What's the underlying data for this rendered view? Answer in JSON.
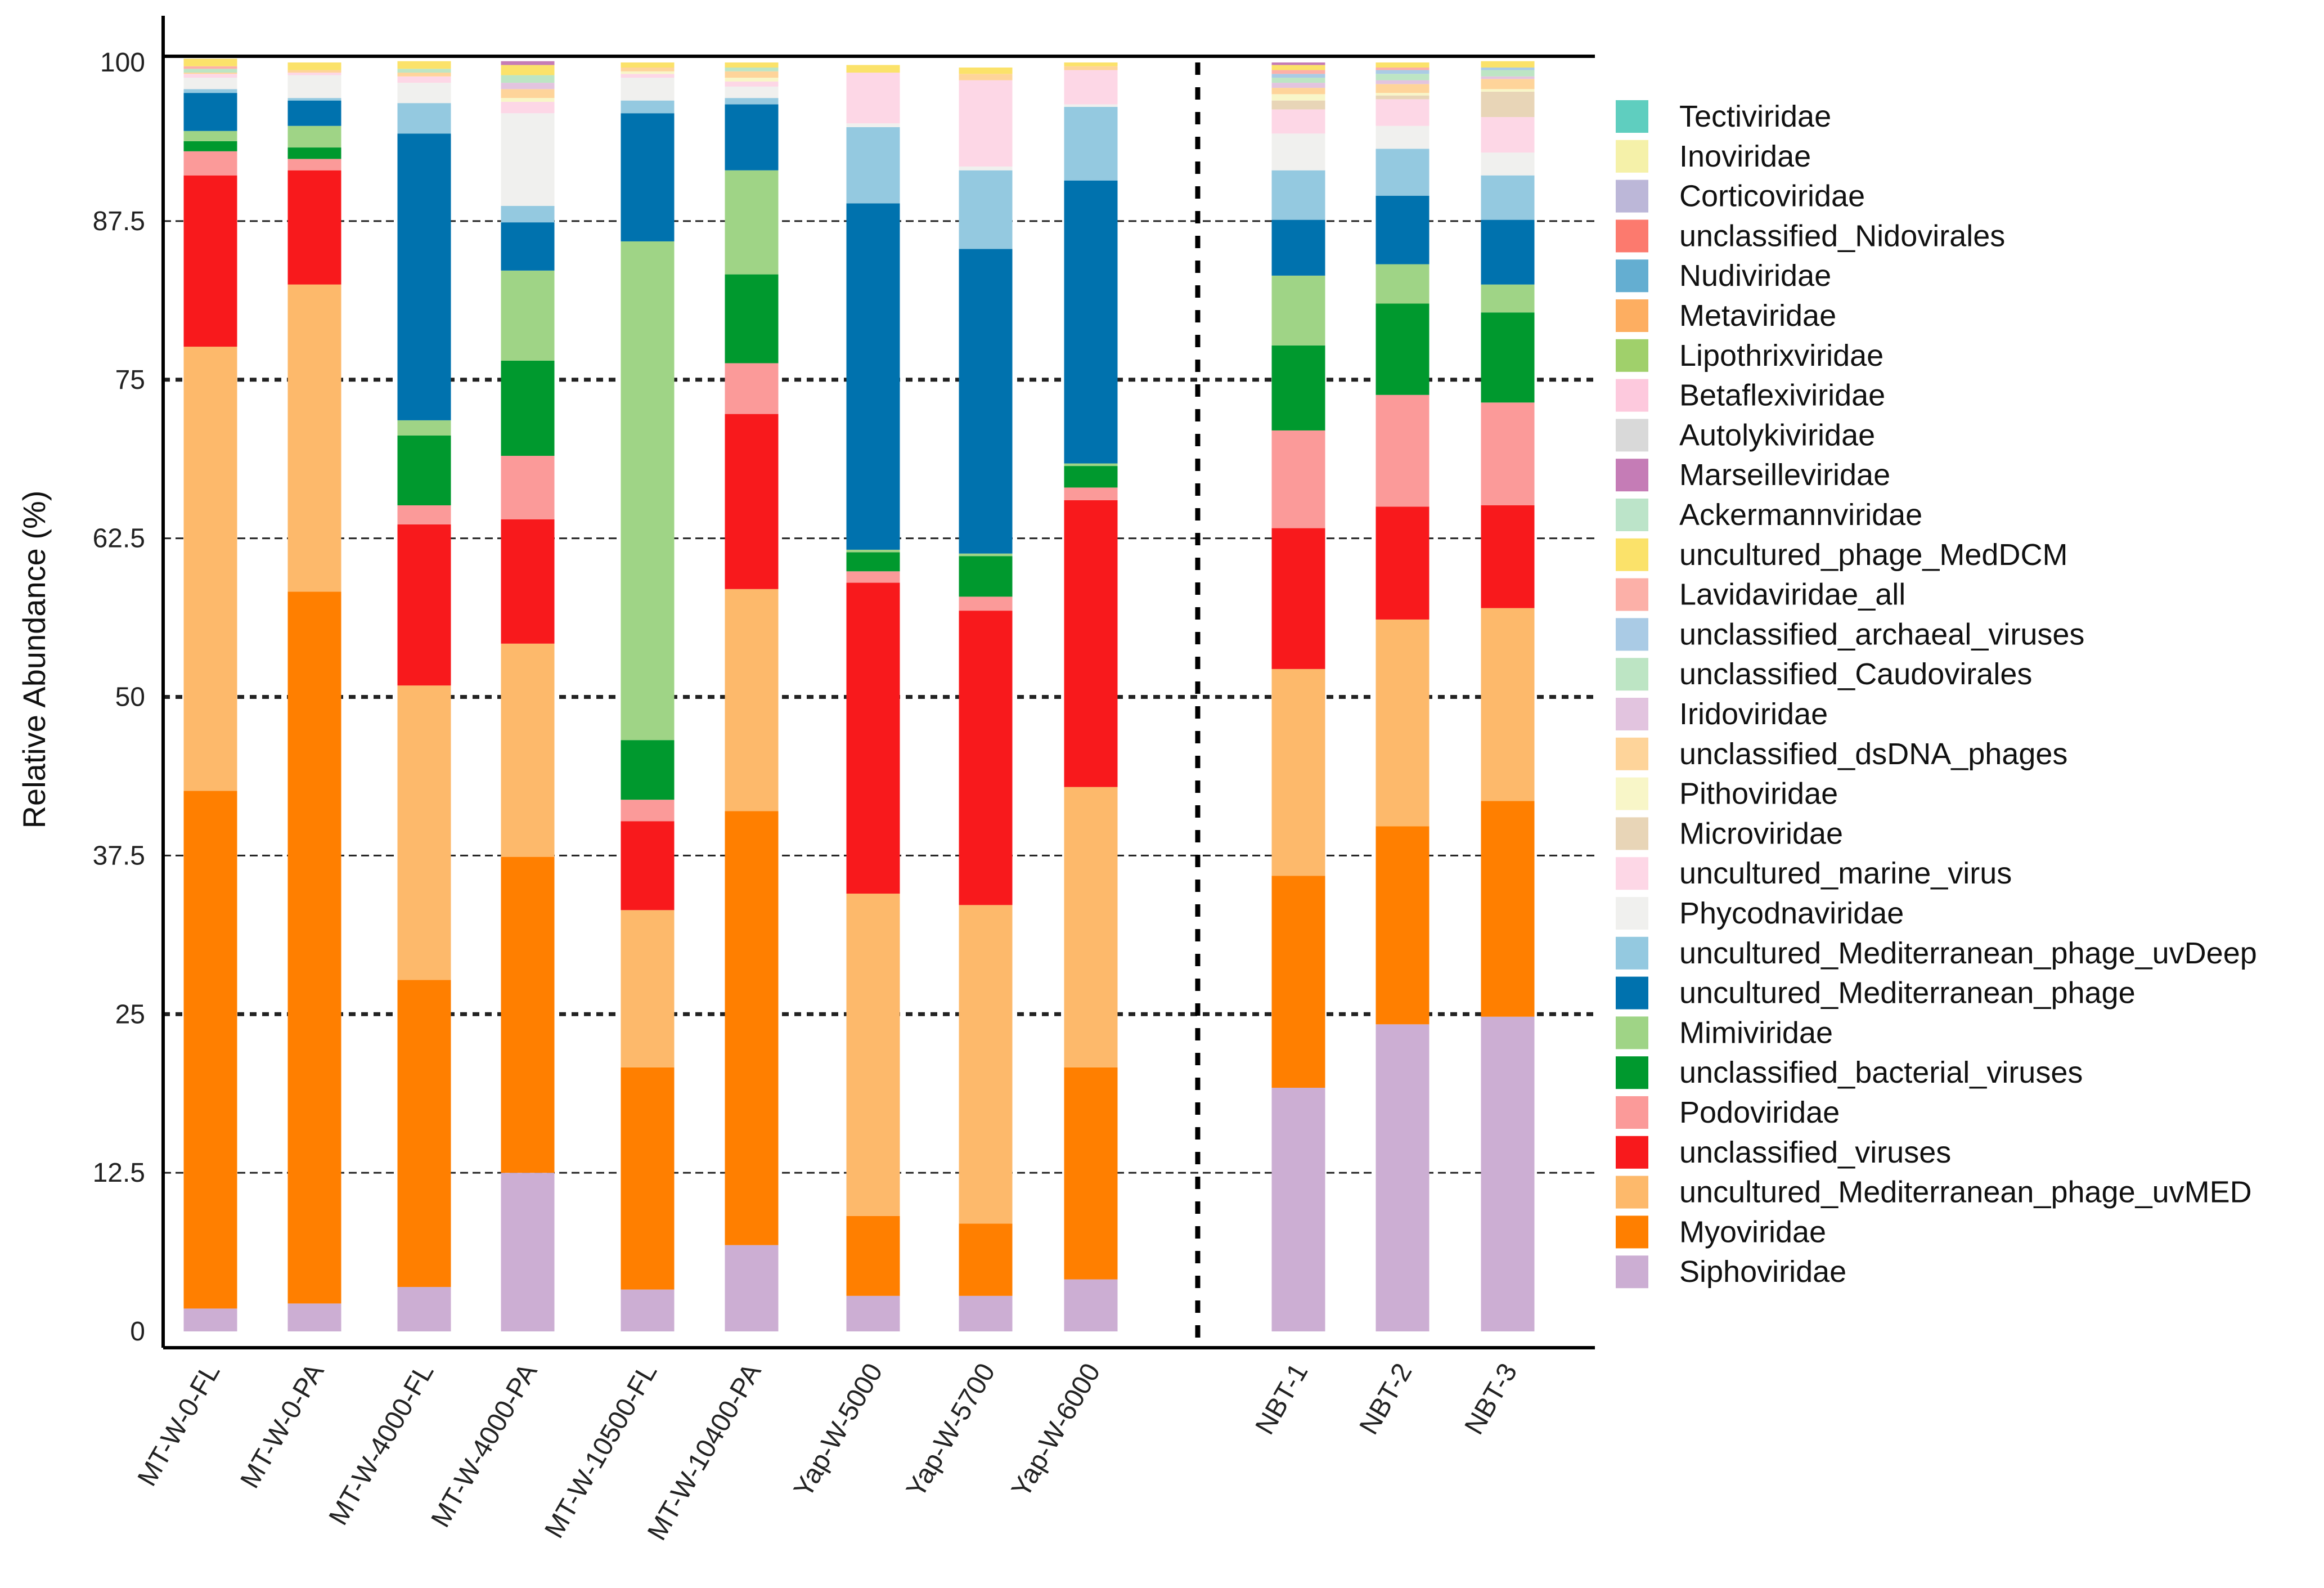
{
  "chart_data": {
    "type": "bar",
    "stacked": true,
    "title": "",
    "xlabel": "",
    "ylabel": "Relative Abundance (%)",
    "ylim": [
      0,
      100
    ],
    "yticks": [
      "0",
      "12.5",
      "25",
      "37.5",
      "50",
      "62.5",
      "75",
      "87.5",
      "100"
    ],
    "grid": true,
    "legend_position": "right",
    "categories": [
      "MT-W-0-FL",
      "MT-W-0-PA",
      "MT-W-4000-FL",
      "MT-W-4000-PA",
      "MT-W-10500-FL",
      "MT-W-10400-PA",
      "Yap-W-5000",
      "Yap-W-5700",
      "Yap-W-6000",
      "NBT-1",
      "NBT-2",
      "NBT-3"
    ],
    "group_separator_after": "Yap-W-6000",
    "series": [
      {
        "name": "Siphoviridae",
        "color": "#CCAED3",
        "values": [
          1.8,
          2.2,
          3.5,
          12.5,
          3.3,
          6.8,
          2.8,
          2.8,
          4.1,
          19.2,
          24.2,
          24.8
        ]
      },
      {
        "name": "Myoviridae",
        "color": "#FF7F00",
        "values": [
          40.8,
          56.1,
          24.2,
          24.9,
          17.5,
          34.2,
          6.3,
          5.7,
          16.7,
          16.7,
          15.6,
          17.0
        ]
      },
      {
        "name": "uncultured_Mediterranean_phage_uvMED",
        "color": "#FDB96B",
        "values": [
          35.0,
          24.2,
          23.2,
          16.8,
          12.4,
          17.5,
          25.4,
          25.1,
          22.1,
          16.3,
          16.3,
          15.2
        ]
      },
      {
        "name": "unclassified_viruses",
        "color": "#F8191C",
        "values": [
          13.5,
          9.0,
          12.7,
          9.8,
          7.0,
          13.8,
          24.5,
          23.2,
          22.6,
          11.1,
          8.9,
          8.1
        ]
      },
      {
        "name": "Podoviridae",
        "color": "#FB9A99",
        "values": [
          1.9,
          0.9,
          1.5,
          5.0,
          1.7,
          4.0,
          0.9,
          1.1,
          1.0,
          7.7,
          8.8,
          8.1
        ]
      },
      {
        "name": "unclassified_bacterial_viruses",
        "color": "#00992E",
        "values": [
          0.8,
          0.9,
          5.5,
          7.5,
          4.7,
          7.0,
          1.5,
          3.2,
          1.7,
          6.7,
          7.2,
          7.1
        ]
      },
      {
        "name": "Mimiviridae",
        "color": "#9FD486",
        "values": [
          0.8,
          1.7,
          1.2,
          7.1,
          39.3,
          8.2,
          0.2,
          0.2,
          0.2,
          5.5,
          3.1,
          2.2
        ]
      },
      {
        "name": "uncultured_Mediterranean_phage",
        "color": "#0072AE",
        "values": [
          3.0,
          2.0,
          22.6,
          3.8,
          10.1,
          5.2,
          27.3,
          24.0,
          22.3,
          4.4,
          5.4,
          5.1
        ]
      },
      {
        "name": "uncultured_Mediterranean_phage_uvDeep",
        "color": "#94C9E0",
        "values": [
          0.3,
          0.2,
          2.4,
          1.3,
          1.0,
          0.5,
          6.0,
          6.2,
          5.8,
          3.9,
          3.7,
          3.5
        ]
      },
      {
        "name": "Phycodnaviridae",
        "color": "#F0F0EE",
        "values": [
          0.9,
          1.8,
          1.6,
          7.3,
          1.8,
          0.9,
          0.3,
          0.3,
          0.2,
          2.9,
          1.8,
          1.8
        ]
      },
      {
        "name": "uncultured_marine_virus",
        "color": "#FDD7E6",
        "values": [
          0.3,
          0.2,
          0.5,
          0.9,
          0.3,
          0.4,
          4.0,
          6.8,
          2.7,
          1.9,
          2.1,
          2.8
        ]
      },
      {
        "name": "Microviridae",
        "color": "#E8D5B7",
        "values": [
          0,
          0,
          0,
          0,
          0,
          0,
          0,
          0,
          0,
          0.7,
          0.3,
          2.0
        ]
      },
      {
        "name": "Pithoviridae",
        "color": "#F8F6C8",
        "values": [
          0,
          0,
          0,
          0.3,
          0.2,
          0.3,
          0,
          0,
          0,
          0.5,
          0.2,
          0.2
        ]
      },
      {
        "name": "unclassified_dsDNA_phages",
        "color": "#FED49A",
        "values": [
          0.1,
          0.2,
          0.3,
          0.7,
          0.3,
          0.5,
          0,
          0.5,
          0.3,
          0.5,
          0.7,
          0.8
        ]
      },
      {
        "name": "Iridoviridae",
        "color": "#E2C4DF",
        "values": [
          0,
          0,
          0,
          0.5,
          0,
          0,
          0,
          0,
          0,
          0.4,
          0.3,
          0.2
        ]
      },
      {
        "name": "unclassified_Caudovirales",
        "color": "#BDE5C4",
        "values": [
          0.3,
          0,
          0.3,
          0.6,
          0,
          0.3,
          0,
          0,
          0,
          0.4,
          0.5,
          0.5
        ]
      },
      {
        "name": "unclassified_archaeal_viruses",
        "color": "#AACBE5",
        "values": [
          0,
          0,
          0,
          0,
          0,
          0,
          0,
          0,
          0,
          0.3,
          0.3,
          0.2
        ]
      },
      {
        "name": "Lavidaviridae_all",
        "color": "#FCB0A8",
        "values": [
          0.2,
          0,
          0,
          0,
          0,
          0,
          0,
          0,
          0,
          0.3,
          0.2,
          0
        ]
      },
      {
        "name": "uncultured_phage_MedDCM",
        "color": "#FBE26A",
        "values": [
          0.6,
          0.6,
          0.6,
          0.8,
          0.4,
          0.4,
          0.6,
          0.5,
          0.3,
          0.4,
          0.4,
          0.5
        ]
      },
      {
        "name": "Ackermannviridae",
        "color": "#BCE4C9",
        "values": [
          0,
          0,
          0,
          0,
          0,
          0,
          0,
          0,
          0,
          0,
          0,
          0
        ]
      },
      {
        "name": "Marseilleviridae",
        "color": "#C57CB6",
        "values": [
          0,
          0,
          0,
          0.3,
          0,
          0,
          0,
          0,
          0,
          0.2,
          0,
          0
        ]
      },
      {
        "name": "Autolykiviridae",
        "color": "#D9D9D9",
        "values": [
          0,
          0,
          0,
          0,
          0,
          0,
          0,
          0,
          0,
          0,
          0,
          0
        ]
      },
      {
        "name": "Betaflexiviridae",
        "color": "#FDC9DD",
        "values": [
          0,
          0,
          0,
          0,
          0,
          0,
          0,
          0,
          0,
          0,
          0,
          0
        ]
      },
      {
        "name": "Lipothrixviridae",
        "color": "#A0D06B",
        "values": [
          0,
          0,
          0,
          0,
          0,
          0,
          0,
          0,
          0,
          0,
          0,
          0
        ]
      },
      {
        "name": "Metaviridae",
        "color": "#FDAE61",
        "values": [
          0,
          0,
          0,
          0,
          0,
          0,
          0,
          0,
          0,
          0,
          0,
          0
        ]
      },
      {
        "name": "Nudiviridae",
        "color": "#64AED1",
        "values": [
          0,
          0,
          0,
          0,
          0,
          0,
          0,
          0,
          0,
          0,
          0,
          0
        ]
      },
      {
        "name": "unclassified_Nidovirales",
        "color": "#FC7A6E",
        "values": [
          0,
          0,
          0,
          0,
          0,
          0,
          0,
          0,
          0,
          0,
          0,
          0
        ]
      },
      {
        "name": "Corticoviridae",
        "color": "#BCB7D8",
        "values": [
          0,
          0,
          0,
          0,
          0,
          0,
          0,
          0,
          0,
          0,
          0,
          0
        ]
      },
      {
        "name": "Inoviridae",
        "color": "#F5F1A9",
        "values": [
          0,
          0,
          0,
          0,
          0,
          0,
          0,
          0,
          0,
          0,
          0,
          0
        ]
      },
      {
        "name": "Tectiviridae",
        "color": "#5FCEBF",
        "values": [
          0,
          0,
          0,
          0,
          0,
          0,
          0,
          0,
          0,
          0,
          0,
          0
        ]
      }
    ]
  }
}
